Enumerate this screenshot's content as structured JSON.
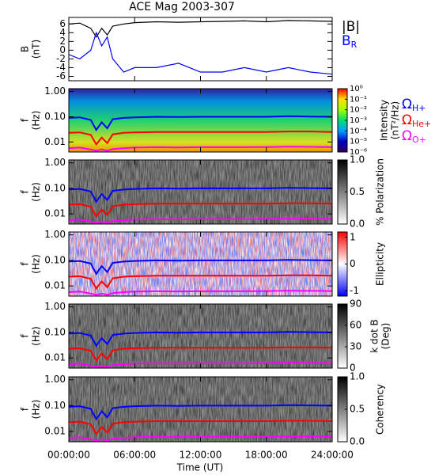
{
  "title": "ACE Mag 2003-307",
  "xlabel": "Time (UT)",
  "chart_data": [
    {
      "type": "line",
      "ylabel": [
        "B",
        "(nT)"
      ],
      "x": [
        0,
        1,
        2,
        2.5,
        3,
        3.5,
        4,
        5,
        6,
        8,
        10,
        12,
        14,
        16,
        18,
        20,
        22,
        24
      ],
      "xlim": [
        0,
        24
      ],
      "xticks": [
        0,
        6,
        12,
        18,
        24
      ],
      "ylim": [
        -7,
        7.5
      ],
      "yticks": [
        -6,
        -4,
        -2,
        0,
        2,
        4,
        6
      ],
      "series": [
        {
          "name": "|B|",
          "color": "#000000",
          "values": [
            6,
            6.2,
            5,
            3,
            5,
            3.5,
            5.5,
            6,
            6.3,
            6.5,
            6.4,
            6.5,
            6.6,
            6.7,
            6.5,
            6.8,
            6.7,
            6.6
          ]
        },
        {
          "name": "B",
          "name_sub": "R",
          "color": "#0000ff",
          "values": [
            -1,
            -2,
            0,
            4,
            1,
            3,
            -2,
            -5,
            -4,
            -4,
            -3,
            -5,
            -5,
            -4,
            -5,
            -4,
            -5,
            -5.5
          ]
        }
      ]
    },
    {
      "type": "line",
      "ylabel": [
        "f",
        "(Hz)"
      ],
      "ylog": true,
      "x": [
        0,
        1,
        2,
        2.5,
        3,
        3.5,
        4,
        5,
        6,
        8,
        10,
        12,
        14,
        16,
        18,
        20,
        22,
        24
      ],
      "xlim": [
        0,
        24
      ],
      "xticks": [
        0,
        6,
        12,
        18,
        24
      ],
      "ylim": [
        0.004,
        1.3
      ],
      "yticks": [
        {
          "value": 1,
          "label": "1.00"
        },
        {
          "value": 0.1,
          "label": "0.10"
        },
        {
          "value": 0.01,
          "label": "0.01"
        }
      ],
      "colorbar": {
        "label": [
          "Intensity",
          "(nT²/Hz)"
        ],
        "log": true,
        "lim": [
          1e-06,
          1
        ],
        "ticks": [
          {
            "value": 1,
            "label": "10⁰"
          },
          {
            "value": 0.1,
            "label": "10⁻¹"
          },
          {
            "value": 0.01,
            "label": "10⁻²"
          },
          {
            "value": 0.001,
            "label": "10⁻³"
          },
          {
            "value": 0.0001,
            "label": "10⁻⁴"
          },
          {
            "value": 1e-05,
            "label": "10⁻⁵"
          },
          {
            "value": 1e-06,
            "label": "10⁻⁶"
          }
        ],
        "colors": [
          "#30005a",
          "#0000c8",
          "#00a0ff",
          "#00e070",
          "#a0ff00",
          "#ffe000",
          "#ff0000"
        ]
      },
      "series": [
        {
          "name": "Ω",
          "name_sub": "H+",
          "color": "#0000ff",
          "values": [
            0.09,
            0.095,
            0.075,
            0.03,
            0.06,
            0.035,
            0.08,
            0.09,
            0.095,
            0.1,
            0.098,
            0.1,
            0.1,
            0.1,
            0.1,
            0.105,
            0.102,
            0.1
          ]
        },
        {
          "name": "Ω",
          "name_sub": "He+",
          "color": "#ff0000",
          "values": [
            0.023,
            0.024,
            0.019,
            0.008,
            0.015,
            0.009,
            0.02,
            0.023,
            0.024,
            0.025,
            0.025,
            0.025,
            0.025,
            0.025,
            0.025,
            0.026,
            0.026,
            0.025
          ]
        },
        {
          "name": "Ω",
          "name_sub": "O+",
          "color": "#ff00ff",
          "values": [
            0.0057,
            0.006,
            0.005,
            0.0045,
            0.005,
            0.0045,
            0.0052,
            0.0057,
            0.006,
            0.0062,
            0.0061,
            0.0062,
            0.0062,
            0.0062,
            0.0063,
            0.0065,
            0.0064,
            0.0063
          ]
        }
      ]
    },
    {
      "type": "line",
      "ylabel": [
        "f",
        "(Hz)"
      ],
      "ylog": true,
      "x": [
        0,
        1,
        2,
        2.5,
        3,
        3.5,
        4,
        5,
        6,
        8,
        10,
        12,
        14,
        16,
        18,
        20,
        22,
        24
      ],
      "xlim": [
        0,
        24
      ],
      "xticks": [
        0,
        6,
        12,
        18,
        24
      ],
      "ylim": [
        0.004,
        1.3
      ],
      "yticks": [
        {
          "value": 1,
          "label": "1.00"
        },
        {
          "value": 0.1,
          "label": "0.10"
        },
        {
          "value": 0.01,
          "label": "0.01"
        }
      ],
      "colorbar": {
        "label": [
          "% Polarization"
        ],
        "lim": [
          0,
          1
        ],
        "ticks": [
          {
            "value": 0,
            "label": "0.0"
          },
          {
            "value": 0.5,
            "label": "0.5"
          },
          {
            "value": 1,
            "label": "1.0"
          }
        ],
        "colors": [
          "#ffffff",
          "#000000"
        ]
      },
      "series": [
        {
          "color": "#0000ff",
          "values": [
            0.09,
            0.095,
            0.075,
            0.03,
            0.06,
            0.035,
            0.08,
            0.09,
            0.095,
            0.1,
            0.098,
            0.1,
            0.1,
            0.1,
            0.1,
            0.105,
            0.102,
            0.1
          ]
        },
        {
          "color": "#ff0000",
          "values": [
            0.023,
            0.024,
            0.019,
            0.008,
            0.015,
            0.009,
            0.02,
            0.023,
            0.024,
            0.025,
            0.025,
            0.025,
            0.025,
            0.025,
            0.025,
            0.026,
            0.026,
            0.025
          ]
        },
        {
          "color": "#ff00ff",
          "values": [
            0.0057,
            0.006,
            0.005,
            0.0045,
            0.005,
            0.0045,
            0.0052,
            0.0057,
            0.006,
            0.0062,
            0.0061,
            0.0062,
            0.0062,
            0.0062,
            0.0063,
            0.0065,
            0.0064,
            0.0063
          ]
        }
      ]
    },
    {
      "type": "line",
      "ylabel": [
        "f",
        "(Hz)"
      ],
      "ylog": true,
      "x": [
        0,
        1,
        2,
        2.5,
        3,
        3.5,
        4,
        5,
        6,
        8,
        10,
        12,
        14,
        16,
        18,
        20,
        22,
        24
      ],
      "xlim": [
        0,
        24
      ],
      "xticks": [
        0,
        6,
        12,
        18,
        24
      ],
      "ylim": [
        0.004,
        1.3
      ],
      "yticks": [
        {
          "value": 1,
          "label": "1.00"
        },
        {
          "value": 0.1,
          "label": "0.10"
        },
        {
          "value": 0.01,
          "label": "0.01"
        }
      ],
      "colorbar": {
        "label": [
          "Ellipticity"
        ],
        "lim": [
          -1.2,
          1.2
        ],
        "ticks": [
          -1,
          0,
          1
        ],
        "colors": [
          "#0000ff",
          "#ffffff",
          "#ff0000"
        ]
      },
      "series": [
        {
          "color": "#0000ff",
          "values": [
            0.09,
            0.095,
            0.075,
            0.03,
            0.06,
            0.035,
            0.08,
            0.09,
            0.095,
            0.1,
            0.098,
            0.1,
            0.1,
            0.1,
            0.1,
            0.105,
            0.102,
            0.1
          ]
        },
        {
          "color": "#ff0000",
          "values": [
            0.023,
            0.024,
            0.019,
            0.008,
            0.015,
            0.009,
            0.02,
            0.023,
            0.024,
            0.025,
            0.025,
            0.025,
            0.025,
            0.025,
            0.025,
            0.026,
            0.026,
            0.025
          ]
        },
        {
          "color": "#ff00ff",
          "values": [
            0.0057,
            0.006,
            0.005,
            0.0045,
            0.005,
            0.0045,
            0.0052,
            0.0057,
            0.006,
            0.0062,
            0.0061,
            0.0062,
            0.0062,
            0.0062,
            0.0063,
            0.0065,
            0.0064,
            0.0063
          ]
        }
      ]
    },
    {
      "type": "line",
      "ylabel": [
        "f",
        "(Hz)"
      ],
      "ylog": true,
      "x": [
        0,
        1,
        2,
        2.5,
        3,
        3.5,
        4,
        5,
        6,
        8,
        10,
        12,
        14,
        16,
        18,
        20,
        22,
        24
      ],
      "xlim": [
        0,
        24
      ],
      "xticks": [
        0,
        6,
        12,
        18,
        24
      ],
      "ylim": [
        0.004,
        1.3
      ],
      "yticks": [
        {
          "value": 1,
          "label": "1.00"
        },
        {
          "value": 0.1,
          "label": "0.10"
        },
        {
          "value": 0.01,
          "label": "0.01"
        }
      ],
      "colorbar": {
        "label": [
          "k dot B",
          "(Deg)"
        ],
        "lim": [
          0,
          90
        ],
        "ticks": [
          0,
          30,
          60,
          90
        ],
        "colors": [
          "#ffffff",
          "#000000"
        ]
      },
      "series": [
        {
          "color": "#0000ff",
          "values": [
            0.09,
            0.095,
            0.075,
            0.03,
            0.06,
            0.035,
            0.08,
            0.09,
            0.095,
            0.1,
            0.098,
            0.1,
            0.1,
            0.1,
            0.1,
            0.105,
            0.102,
            0.1
          ]
        },
        {
          "color": "#ff0000",
          "values": [
            0.023,
            0.024,
            0.019,
            0.008,
            0.015,
            0.009,
            0.02,
            0.023,
            0.024,
            0.025,
            0.025,
            0.025,
            0.025,
            0.025,
            0.025,
            0.026,
            0.026,
            0.025
          ]
        },
        {
          "color": "#ff00ff",
          "values": [
            0.0057,
            0.006,
            0.005,
            0.0045,
            0.005,
            0.0045,
            0.0052,
            0.0057,
            0.006,
            0.0062,
            0.0061,
            0.0062,
            0.0062,
            0.0062,
            0.0063,
            0.0065,
            0.0064,
            0.0063
          ]
        }
      ]
    },
    {
      "type": "line",
      "ylabel": [
        "f",
        "(Hz)"
      ],
      "ylog": true,
      "x": [
        0,
        1,
        2,
        2.5,
        3,
        3.5,
        4,
        5,
        6,
        8,
        10,
        12,
        14,
        16,
        18,
        20,
        22,
        24
      ],
      "xlim": [
        0,
        24
      ],
      "xticks": [
        {
          "value": 0,
          "label": "00:00:00"
        },
        {
          "value": 6,
          "label": "06:00:00"
        },
        {
          "value": 12,
          "label": "12:00:00"
        },
        {
          "value": 18,
          "label": "18:00:00"
        },
        {
          "value": 24,
          "label": "24:00:00"
        }
      ],
      "ylim": [
        0.004,
        1.3
      ],
      "yticks": [
        {
          "value": 1,
          "label": "1.00"
        },
        {
          "value": 0.1,
          "label": "0.10"
        },
        {
          "value": 0.01,
          "label": "0.01"
        }
      ],
      "colorbar": {
        "label": [
          "Coherency"
        ],
        "lim": [
          0,
          1
        ],
        "ticks": [
          {
            "value": 0,
            "label": "0.0"
          },
          {
            "value": 0.5,
            "label": "0.5"
          },
          {
            "value": 1,
            "label": "1.0"
          }
        ],
        "colors": [
          "#ffffff",
          "#000000"
        ]
      },
      "series": [
        {
          "color": "#0000ff",
          "values": [
            0.09,
            0.095,
            0.075,
            0.03,
            0.06,
            0.035,
            0.08,
            0.09,
            0.095,
            0.1,
            0.098,
            0.1,
            0.1,
            0.1,
            0.1,
            0.105,
            0.102,
            0.1
          ]
        },
        {
          "color": "#ff0000",
          "values": [
            0.023,
            0.024,
            0.019,
            0.008,
            0.015,
            0.009,
            0.02,
            0.023,
            0.024,
            0.025,
            0.025,
            0.025,
            0.025,
            0.025,
            0.025,
            0.026,
            0.026,
            0.025
          ]
        },
        {
          "color": "#ff00ff",
          "values": [
            0.0057,
            0.006,
            0.005,
            0.0045,
            0.005,
            0.0045,
            0.0052,
            0.0057,
            0.006,
            0.0062,
            0.0061,
            0.0062,
            0.0062,
            0.0062,
            0.0063,
            0.0065,
            0.0064,
            0.0063
          ]
        }
      ]
    }
  ]
}
